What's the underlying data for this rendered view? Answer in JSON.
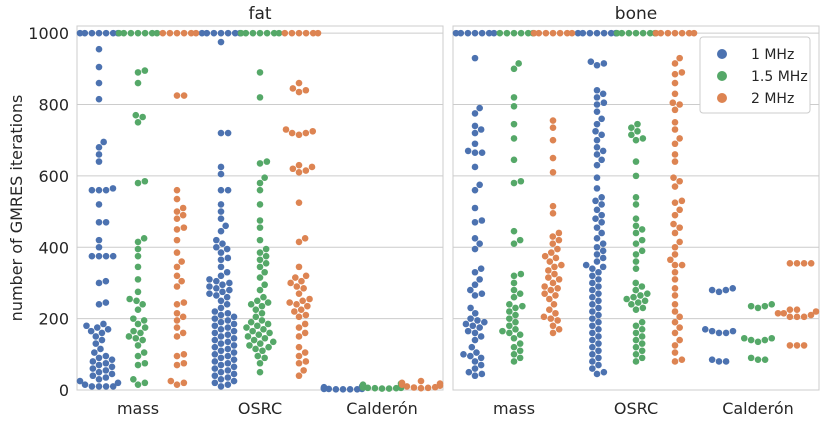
{
  "colors": {
    "1 MHz": "#4c72b0",
    "1.5 MHz": "#55a868",
    "2 MHz": "#dd8452",
    "grid": "#cccccc",
    "frame": "#cccccc"
  },
  "chart_data": {
    "type": "scatter",
    "subtype": "swarm",
    "ylabel": "number of GMRES iterations",
    "ylim": [
      0,
      1020
    ],
    "yticks": [
      0,
      200,
      400,
      600,
      800,
      1000
    ],
    "categories": [
      "mass",
      "OSRC",
      "Calderón"
    ],
    "hue_order": [
      "1 MHz",
      "1.5 MHz",
      "2 MHz"
    ],
    "grid": true,
    "legend": {
      "placement": "top-right",
      "panel": "bone",
      "entries": [
        "1 MHz",
        "1.5 MHz",
        "2 MHz"
      ]
    },
    "panels": [
      {
        "title": "fat",
        "series": [
          {
            "name": "1 MHz",
            "groups": [
              [
                1000,
                1000,
                1000,
                1000,
                1000,
                1000,
                1000,
                955,
                905,
                860,
                815,
                695,
                680,
                660,
                640,
                565,
                560,
                560,
                560,
                520,
                470,
                470,
                420,
                400,
                375,
                375,
                375,
                375,
                305,
                300,
                245,
                240,
                185,
                180,
                175,
                170,
                165,
                160,
                150,
                140,
                130,
                115,
                105,
                95,
                90,
                85,
                80,
                75,
                70,
                65,
                60,
                55,
                50,
                45,
                40,
                35,
                30,
                25,
                20,
                15,
                10,
                10,
                10,
                10
              ],
              [
                1000,
                1000,
                1000,
                1000,
                1000,
                1000,
                1000,
                975,
                720,
                720,
                625,
                605,
                560,
                560,
                520,
                500,
                480,
                460,
                445,
                420,
                410,
                400,
                395,
                385,
                370,
                365,
                345,
                330,
                320,
                310,
                305,
                300,
                295,
                290,
                285,
                280,
                275,
                270,
                265,
                260,
                250,
                240,
                230,
                220,
                215,
                210,
                205,
                200,
                195,
                190,
                185,
                180,
                175,
                170,
                165,
                160,
                155,
                150,
                145,
                140,
                135,
                130,
                125,
                120,
                115,
                110,
                105,
                100,
                95,
                90,
                85,
                80,
                75,
                70,
                65,
                60,
                55,
                50,
                45,
                40,
                35,
                30,
                25,
                20,
                15,
                10
              ],
              [
                10,
                8,
                6,
                5,
                5,
                4,
                4,
                3,
                3,
                3,
                2,
                2,
                2,
                2
              ]
            ]
          },
          {
            "name": "1.5 MHz",
            "groups": [
              [
                1000,
                1000,
                1000,
                1000,
                1000,
                1000,
                1000,
                895,
                890,
                860,
                770,
                765,
                750,
                585,
                580,
                425,
                415,
                395,
                375,
                345,
                310,
                275,
                255,
                250,
                240,
                225,
                200,
                195,
                185,
                175,
                165,
                160,
                150,
                145,
                140,
                125,
                105,
                95,
                75,
                70,
                30,
                20,
                15
              ],
              [
                1000,
                1000,
                1000,
                1000,
                1000,
                1000,
                1000,
                890,
                820,
                640,
                635,
                595,
                580,
                560,
                520,
                475,
                455,
                420,
                395,
                385,
                375,
                365,
                355,
                345,
                330,
                315,
                295,
                280,
                260,
                250,
                245,
                240,
                235,
                225,
                215,
                205,
                195,
                190,
                185,
                180,
                175,
                170,
                165,
                160,
                155,
                150,
                145,
                140,
                135,
                130,
                125,
                120,
                115,
                110,
                95,
                90,
                75,
                50
              ],
              [
                18,
                15,
                12,
                10,
                9,
                8,
                8,
                7,
                6,
                6,
                5,
                5,
                4,
                4
              ]
            ]
          },
          {
            "name": "2 MHz",
            "groups": [
              [
                1000,
                1000,
                1000,
                1000,
                1000,
                1000,
                825,
                825,
                560,
                535,
                510,
                500,
                490,
                480,
                455,
                450,
                420,
                385,
                360,
                345,
                320,
                305,
                290,
                245,
                240,
                215,
                205,
                195,
                175,
                160,
                150,
                100,
                95,
                75,
                70,
                25,
                20,
                15
              ],
              [
                1000,
                1000,
                1000,
                1000,
                1000,
                1000,
                860,
                845,
                840,
                835,
                730,
                725,
                720,
                720,
                715,
                630,
                625,
                620,
                615,
                610,
                525,
                425,
                415,
                345,
                320,
                315,
                305,
                300,
                290,
                285,
                270,
                255,
                250,
                245,
                240,
                235,
                225,
                220,
                210,
                205,
                185,
                175,
                160,
                150,
                120,
                105,
                95,
                80,
                75,
                55,
                40
              ],
              [
                25,
                20,
                18,
                15,
                12,
                10,
                8,
                7,
                6,
                5
              ]
            ]
          }
        ]
      },
      {
        "title": "bone",
        "series": [
          {
            "name": "1 MHz",
            "groups": [
              [
                1000,
                1000,
                1000,
                1000,
                1000,
                1000,
                1000,
                930,
                790,
                775,
                740,
                730,
                720,
                690,
                670,
                665,
                665,
                625,
                575,
                560,
                510,
                475,
                470,
                425,
                410,
                395,
                340,
                330,
                310,
                295,
                280,
                270,
                265,
                230,
                215,
                200,
                195,
                190,
                185,
                180,
                175,
                165,
                160,
                150,
                140,
                120,
                105,
                100,
                95,
                90,
                80,
                70,
                60,
                50,
                45,
                40
              ],
              [
                1000,
                1000,
                1000,
                1000,
                1000,
                1000,
                1000,
                1000,
                920,
                915,
                910,
                840,
                830,
                820,
                805,
                800,
                780,
                760,
                745,
                725,
                715,
                700,
                680,
                670,
                660,
                645,
                630,
                595,
                565,
                540,
                530,
                520,
                505,
                490,
                480,
                470,
                455,
                440,
                425,
                410,
                400,
                390,
                380,
                370,
                360,
                350,
                345,
                340,
                330,
                320,
                310,
                300,
                290,
                280,
                270,
                260,
                250,
                240,
                230,
                220,
                210,
                200,
                190,
                180,
                170,
                160,
                150,
                140,
                130,
                120,
                110,
                100,
                90,
                80,
                70,
                60,
                50,
                45
              ],
              [
                285,
                280,
                280,
                275,
                170,
                165,
                165,
                160,
                160,
                85,
                80,
                80
              ]
            ]
          },
          {
            "name": "1.5 MHz",
            "groups": [
              [
                1000,
                1000,
                1000,
                1000,
                1000,
                1000,
                915,
                900,
                820,
                795,
                745,
                705,
                645,
                585,
                580,
                445,
                420,
                410,
                325,
                320,
                300,
                280,
                270,
                260,
                240,
                235,
                230,
                220,
                210,
                200,
                190,
                180,
                170,
                165,
                160,
                155,
                145,
                130,
                120,
                110,
                100,
                90,
                80
              ],
              [
                1000,
                1000,
                1000,
                1000,
                1000,
                1000,
                1000,
                745,
                735,
                725,
                715,
                705,
                700,
                640,
                600,
                540,
                520,
                480,
                460,
                450,
                440,
                420,
                410,
                390,
                380,
                360,
                340,
                300,
                290,
                280,
                270,
                265,
                260,
                255,
                250,
                245,
                240,
                230,
                225,
                190,
                180,
                170,
                160,
                150,
                140,
                130,
                120,
                110,
                100,
                90,
                80
              ],
              [
                240,
                235,
                235,
                230,
                145,
                145,
                140,
                140,
                135,
                90,
                85,
                85
              ]
            ]
          },
          {
            "name": "2 MHz",
            "groups": [
              [
                1000,
                1000,
                1000,
                1000,
                1000,
                1000,
                1000,
                755,
                735,
                700,
                650,
                610,
                515,
                495,
                440,
                430,
                420,
                410,
                395,
                385,
                375,
                370,
                360,
                350,
                345,
                335,
                325,
                315,
                310,
                300,
                290,
                285,
                280,
                270,
                265,
                255,
                240,
                225,
                215,
                205,
                200,
                195,
                180,
                170,
                160
              ],
              [
                1000,
                1000,
                1000,
                1000,
                1000,
                1000,
                1000,
                930,
                915,
                890,
                885,
                860,
                830,
                805,
                800,
                785,
                750,
                730,
                705,
                690,
                660,
                640,
                595,
                585,
                570,
                530,
                525,
                505,
                490,
                465,
                455,
                440,
                415,
                400,
                380,
                365,
                350,
                350,
                330,
                310,
                285,
                265,
                240,
                220,
                205,
                190,
                175,
                160,
                140,
                125,
                105,
                85,
                80
              ],
              [
                355,
                355,
                355,
                355,
                225,
                225,
                220,
                215,
                215,
                210,
                205,
                205,
                205,
                125,
                125,
                125
              ]
            ]
          }
        ]
      }
    ]
  }
}
